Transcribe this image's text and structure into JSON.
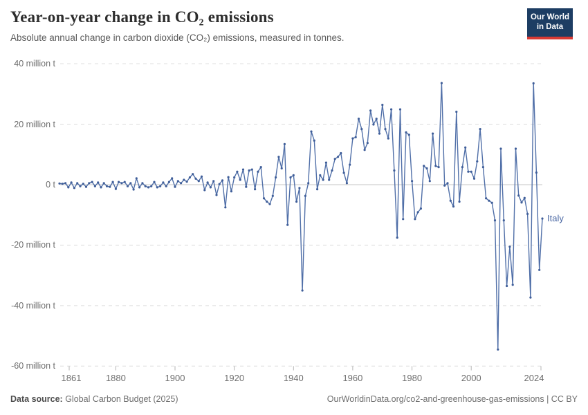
{
  "header": {
    "title": "Year-on-year change in CO₂ emissions",
    "subtitle": "Absolute annual change in carbon dioxide (CO₂) emissions, measured in tonnes.",
    "logo_line1": "Our World",
    "logo_line2": "in Data",
    "logo_bg": "#1d3d63",
    "logo_accent": "#d93a34"
  },
  "footer": {
    "source_label": "Data source:",
    "source_value": " Global Carbon Budget (2025)",
    "url_license": "OurWorldinData.org/co2-and-greenhouse-gas-emissions | CC BY"
  },
  "chart_data": {
    "type": "line",
    "title": "Year-on-year change in CO₂ emissions",
    "entity": "Italy",
    "unit": "tonnes",
    "line_color": "#506fa8",
    "dot_color": "#3f5e99",
    "xlim": [
      1861,
      2024
    ],
    "ylim": [
      -60000000,
      40000000
    ],
    "grid": "dashed horizontal",
    "y_tick_labels": [
      "40 million t",
      "20 million t",
      "0 t",
      "-20 million t",
      "-40 million t",
      "-60 million t"
    ],
    "y_tick_values_mt": [
      40,
      20,
      0,
      -20,
      -40,
      -60
    ],
    "x_tick_labels": [
      "1861",
      "1880",
      "1900",
      "1920",
      "1940",
      "1960",
      "1980",
      "2000",
      "2024"
    ],
    "start_year": 1861,
    "end_year": 2024,
    "series": [
      {
        "name": "Italy",
        "values_mt": [
          0.4,
          0.3,
          0.5,
          -0.9,
          0.7,
          -1.1,
          0.5,
          -0.5,
          0.3,
          -0.7,
          0.5,
          0.9,
          -0.5,
          0.7,
          -0.9,
          0.5,
          -0.5,
          -0.7,
          0.9,
          -1.4,
          0.9,
          0.5,
          0.9,
          -0.5,
          0.5,
          -1.6,
          2.1,
          -0.9,
          0.5,
          -0.5,
          -0.9,
          -0.5,
          0.9,
          -0.9,
          -0.5,
          0.7,
          -0.5,
          0.9,
          2.1,
          -0.7,
          1.2,
          0.5,
          1.6,
          1.0,
          2.4,
          3.5,
          2.0,
          1.2,
          2.7,
          -1.8,
          0.7,
          -0.9,
          1.2,
          -3.4,
          0.2,
          1.4,
          -7.5,
          2.5,
          -2.2,
          2.4,
          4.3,
          1.6,
          5.0,
          -0.7,
          4.7,
          5.0,
          -1.5,
          4.3,
          5.8,
          -4.5,
          -5.6,
          -6.4,
          -3.7,
          2.4,
          9.2,
          5.4,
          13.4,
          -13.3,
          2.4,
          3.1,
          -5.6,
          -1.1,
          -35.0,
          -3.7,
          0.5,
          17.6,
          14.6,
          -1.5,
          3.1,
          1.6,
          7.3,
          1.6,
          4.7,
          8.5,
          9.2,
          10.4,
          3.9,
          0.5,
          6.6,
          15.3,
          15.7,
          21.8,
          18.4,
          11.5,
          13.8,
          24.5,
          19.9,
          21.8,
          16.9,
          26.4,
          18.4,
          15.3,
          24.9,
          4.7,
          -17.5,
          24.9,
          -11.4,
          17.3,
          16.5,
          1.2,
          -11.4,
          -9.1,
          -7.9,
          6.2,
          5.4,
          1.2,
          16.9,
          6.2,
          5.8,
          33.6,
          -0.3,
          0.5,
          -5.3,
          -7.2,
          24.1,
          -5.6,
          5.8,
          12.3,
          4.3,
          4.3,
          2.0,
          7.7,
          18.4,
          5.8,
          -4.5,
          -5.3,
          -6.0,
          -11.8,
          -54.5,
          11.9,
          -11.8,
          -33.5,
          -20.5,
          -33.1,
          11.9,
          -3.6,
          -5.9,
          -4.4,
          -9.7,
          -37.3,
          33.5,
          4.0,
          -28.2,
          -11.2
        ]
      }
    ]
  }
}
